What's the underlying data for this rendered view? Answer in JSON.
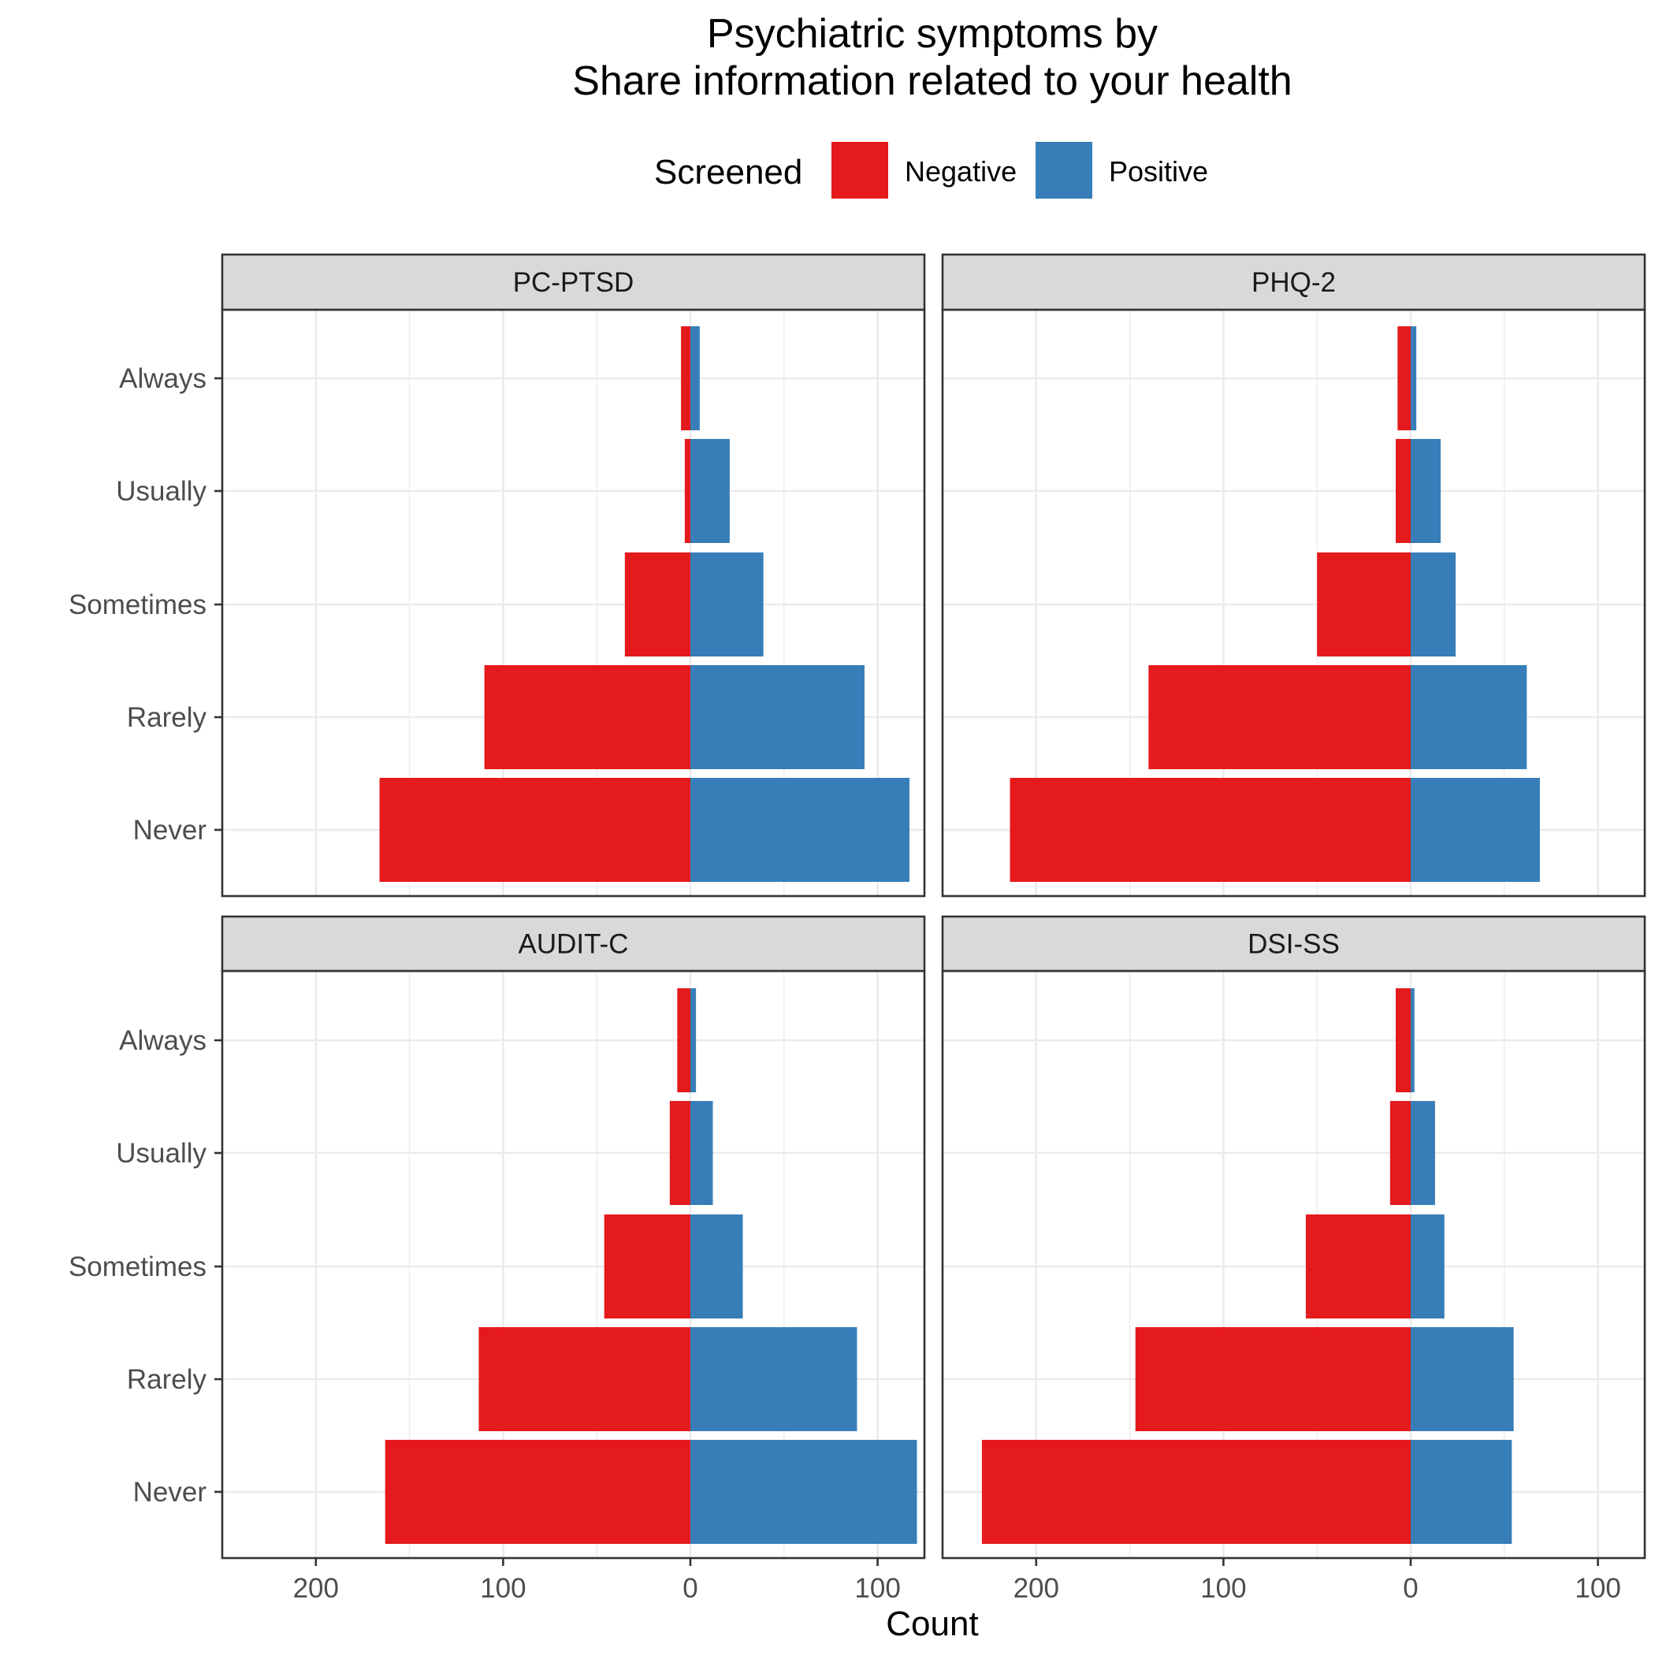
{
  "chart_data": {
    "type": "bar",
    "orientation": "horizontal-diverging",
    "title": [
      "Psychiatric symptoms by",
      "Share information related to your health"
    ],
    "legend": {
      "title": "Screened",
      "position": "top",
      "entries": [
        {
          "name": "Negative",
          "color": "#E41A1C"
        },
        {
          "name": "Positive",
          "color": "#377EB8"
        }
      ]
    },
    "categories": [
      "Never",
      "Rarely",
      "Sometimes",
      "Usually",
      "Always"
    ],
    "xlabel": "Count",
    "ylabel": "",
    "xlim": [
      -250,
      125
    ],
    "xticks": [
      -200,
      -100,
      0,
      100
    ],
    "xtick_labels": [
      "200",
      "100",
      "0",
      "100"
    ],
    "grid": true,
    "panels": [
      {
        "name": "PC-PTSD",
        "series": [
          {
            "name": "Negative",
            "values": [
              -166,
              -110,
              -35,
              -3,
              -5
            ]
          },
          {
            "name": "Positive",
            "values": [
              117,
              93,
              39,
              21,
              5
            ]
          }
        ]
      },
      {
        "name": "PHQ-2",
        "series": [
          {
            "name": "Negative",
            "values": [
              -214,
              -140,
              -50,
              -8,
              -7
            ]
          },
          {
            "name": "Positive",
            "values": [
              69,
              62,
              24,
              16,
              3
            ]
          }
        ]
      },
      {
        "name": "AUDIT-C",
        "series": [
          {
            "name": "Negative",
            "values": [
              -163,
              -113,
              -46,
              -11,
              -7
            ]
          },
          {
            "name": "Positive",
            "values": [
              121,
              89,
              28,
              12,
              3
            ]
          }
        ]
      },
      {
        "name": "DSI-SS",
        "series": [
          {
            "name": "Negative",
            "values": [
              -229,
              -147,
              -56,
              -11,
              -8
            ]
          },
          {
            "name": "Positive",
            "values": [
              54,
              55,
              18,
              13,
              2
            ]
          }
        ]
      }
    ]
  }
}
